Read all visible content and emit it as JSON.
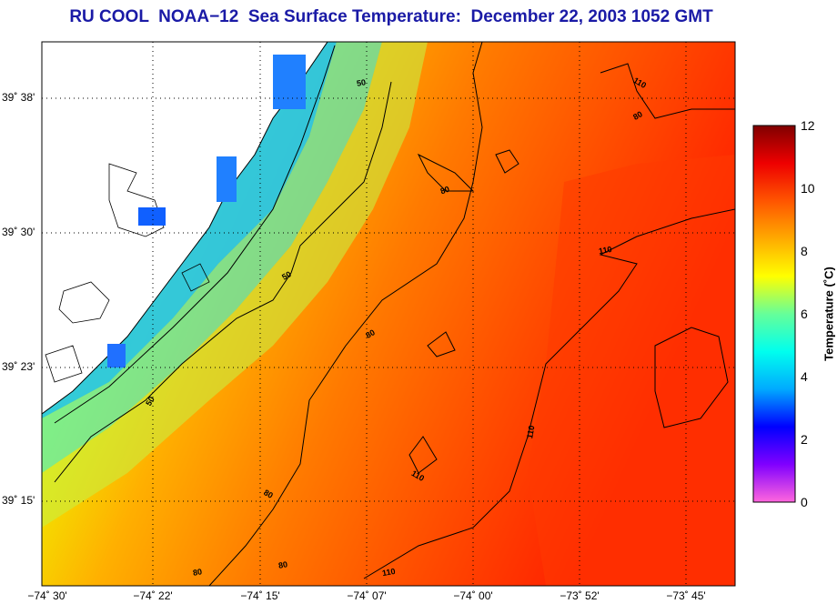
{
  "title": "RU COOL  NOAA−12  Sea Surface Temperature:  December 22, 2003 1052 GMT",
  "latitude_labels": [
    "39˚ 38'",
    "39˚ 30'",
    "39˚ 23'",
    "39˚ 15'"
  ],
  "longitude_labels": [
    "−74˚ 30'",
    "−74˚ 22'",
    "−74˚ 15'",
    "−74˚ 07'",
    "−74˚ 00'",
    "−73˚ 52'",
    "−73˚ 45'"
  ],
  "colorbar": {
    "title": "Temperature (˚C)",
    "ticks": [
      "0",
      "2",
      "4",
      "6",
      "8",
      "10",
      "12"
    ],
    "min": 0,
    "max": 12,
    "colors": [
      "#ff66dd",
      "#8000ff",
      "#0000ff",
      "#00aaff",
      "#00ffee",
      "#66ff99",
      "#ffff00",
      "#ffaa00",
      "#ff5500",
      "#ee0000",
      "#800000"
    ]
  },
  "contour_labels": [
    "50",
    "80",
    "110",
    "80",
    "50",
    "80",
    "50",
    "80",
    "110",
    "110",
    "110",
    "80",
    "80",
    "110"
  ]
}
